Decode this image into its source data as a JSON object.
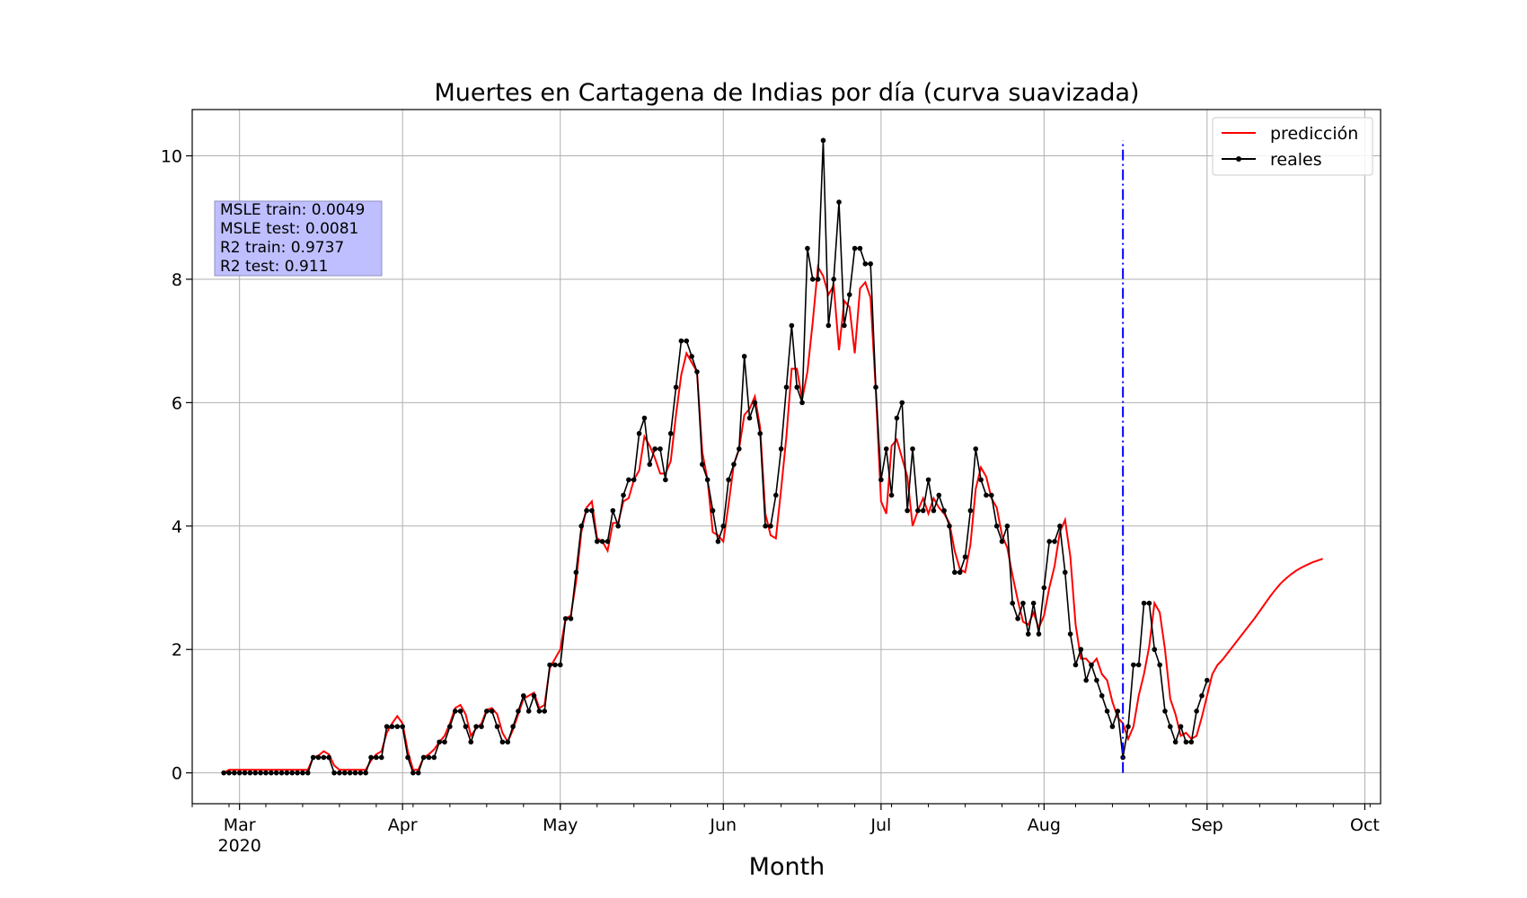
{
  "chart_data": {
    "type": "line",
    "title": "Muertes en Cartagena de Indias por día (curva suavizada)",
    "xlabel": "Month",
    "ylabel": "",
    "x_start": "2020-02-27",
    "x_ticks": [
      {
        "date": "2020-03-01",
        "label": "Mar",
        "sublabel": "2020"
      },
      {
        "date": "2020-04-01",
        "label": "Apr",
        "sublabel": ""
      },
      {
        "date": "2020-05-01",
        "label": "May",
        "sublabel": ""
      },
      {
        "date": "2020-06-01",
        "label": "Jun",
        "sublabel": ""
      },
      {
        "date": "2020-07-01",
        "label": "Jul",
        "sublabel": ""
      },
      {
        "date": "2020-08-01",
        "label": "Aug",
        "sublabel": ""
      },
      {
        "date": "2020-09-01",
        "label": "Sep",
        "sublabel": ""
      },
      {
        "date": "2020-10-01",
        "label": "Oct",
        "sublabel": ""
      }
    ],
    "xlim": [
      "2020-02-21",
      "2020-10-04"
    ],
    "ylim": [
      -0.5,
      10.75
    ],
    "y_ticks": [
      0,
      2,
      4,
      6,
      8,
      10
    ],
    "grid": true,
    "legend_position": "top-right",
    "series": [
      {
        "name": "reales",
        "color": "#000000",
        "marker": "dot",
        "values": [
          0,
          0,
          0,
          0,
          0,
          0,
          0,
          0,
          0,
          0,
          0,
          0,
          0,
          0,
          0,
          0,
          0,
          0.25,
          0.25,
          0.25,
          0.25,
          0,
          0,
          0,
          0,
          0,
          0,
          0,
          0.25,
          0.25,
          0.25,
          0.75,
          0.75,
          0.75,
          0.75,
          0.25,
          0,
          0,
          0.25,
          0.25,
          0.25,
          0.5,
          0.5,
          0.75,
          1,
          1,
          0.75,
          0.5,
          0.75,
          0.75,
          1,
          1,
          0.75,
          0.5,
          0.5,
          0.75,
          1,
          1.25,
          1,
          1.25,
          1,
          1,
          1.75,
          1.75,
          1.75,
          2.5,
          2.5,
          3.25,
          4,
          4.25,
          4.25,
          3.75,
          3.75,
          3.75,
          4.25,
          4,
          4.5,
          4.75,
          4.75,
          5.5,
          5.75,
          5,
          5.25,
          5.25,
          4.75,
          5.5,
          6.25,
          7,
          7,
          6.75,
          6.5,
          5,
          4.75,
          4.25,
          3.75,
          4,
          4.75,
          5,
          5.25,
          6.75,
          5.75,
          6,
          5.5,
          4,
          4,
          4.5,
          5.25,
          6.25,
          7.25,
          6.25,
          6,
          8.5,
          8,
          8,
          10.25,
          7.25,
          8,
          9.25,
          7.25,
          7.75,
          8.5,
          8.5,
          8.25,
          8.25,
          6.25,
          4.75,
          5.25,
          4.5,
          5.75,
          6,
          4.25,
          5.25,
          4.25,
          4.25,
          4.75,
          4.25,
          4.5,
          4.25,
          4,
          3.25,
          3.25,
          3.5,
          4.25,
          5.25,
          4.75,
          4.5,
          4.5,
          4,
          3.75,
          4,
          2.75,
          2.5,
          2.75,
          2.25,
          2.75,
          2.25,
          3,
          3.75,
          3.75,
          4,
          3.25,
          2.25,
          1.75,
          2,
          1.5,
          1.75,
          1.5,
          1.25,
          1,
          0.75,
          1,
          0.25,
          0.75,
          1.75,
          1.75,
          2.75,
          2.75,
          2,
          1.75,
          1,
          0.75,
          0.5,
          0.75,
          0.5,
          0.5,
          1,
          1.25,
          1.5
        ]
      },
      {
        "name": "predicción",
        "color": "#ff0000",
        "marker": "none",
        "values": [
          0,
          0.05,
          0.05,
          0.05,
          0.05,
          0.05,
          0.05,
          0.05,
          0.05,
          0.05,
          0.05,
          0.05,
          0.05,
          0.05,
          0.05,
          0.05,
          0.05,
          0.25,
          0.28,
          0.35,
          0.3,
          0.12,
          0.05,
          0.05,
          0.05,
          0.05,
          0.05,
          0.05,
          0.2,
          0.3,
          0.35,
          0.65,
          0.8,
          0.92,
          0.8,
          0.35,
          0.05,
          0.05,
          0.25,
          0.3,
          0.38,
          0.5,
          0.6,
          0.8,
          1.05,
          1.1,
          0.95,
          0.6,
          0.72,
          0.8,
          1.02,
          1.05,
          0.95,
          0.65,
          0.5,
          0.7,
          0.95,
          1.2,
          1.25,
          1.3,
          1.05,
          1.1,
          1.7,
          1.85,
          2,
          2.5,
          2.55,
          3.1,
          3.9,
          4.3,
          4.4,
          3.8,
          3.75,
          3.6,
          4.05,
          4.05,
          4.4,
          4.45,
          4.75,
          4.9,
          5.45,
          5.3,
          5.1,
          4.85,
          4.85,
          5.05,
          5.8,
          6.45,
          6.8,
          6.65,
          6.5,
          5.2,
          4.75,
          3.9,
          3.85,
          3.75,
          4.35,
          5,
          5.25,
          5.8,
          5.9,
          6.1,
          5.6,
          4.2,
          3.85,
          3.8,
          4.6,
          5.45,
          6.55,
          6.55,
          6.05,
          6.5,
          7.3,
          8.2,
          8.05,
          7.75,
          7.9,
          6.85,
          7.65,
          7.55,
          6.8,
          7.85,
          7.95,
          7.7,
          6.2,
          4.4,
          4.2,
          5.3,
          5.4,
          5.1,
          4.8,
          4,
          4.25,
          4.45,
          4.2,
          4.45,
          4.3,
          4.2,
          4.05,
          3.6,
          3.3,
          3.25,
          3.7,
          4.6,
          4.95,
          4.8,
          4.45,
          4.3,
          3.85,
          3.65,
          3.2,
          2.8,
          2.45,
          2.4,
          2.6,
          2.35,
          2.55,
          3,
          3.35,
          3.9,
          4.1,
          3.5,
          2.4,
          1.85,
          1.85,
          1.75,
          1.85,
          1.6,
          1.5,
          1.15,
          0.9,
          0.8,
          0.55,
          0.75,
          1.25,
          1.6,
          2.05,
          2.75,
          2.6,
          2.0,
          1.2,
          0.95,
          0.6,
          0.65,
          0.55,
          0.6,
          0.9,
          1.25,
          1.6,
          1.75,
          1.84,
          1.95,
          2.06,
          2.17,
          2.28,
          2.39,
          2.5,
          2.62,
          2.74,
          2.86,
          2.97,
          3.07,
          3.15,
          3.22,
          3.28,
          3.33,
          3.37,
          3.41,
          3.44,
          3.47
        ]
      }
    ],
    "vline": {
      "date": "2020-08-16",
      "y_range": [
        0,
        10.25
      ],
      "color": "#0000ff",
      "style": "dash-dot"
    },
    "annotations": [
      "MSLE train: 0.0049",
      "MSLE test: 0.0081",
      "R2 train: 0.9737",
      "R2 test: 0.911"
    ],
    "annotation_color": "#bfbfff"
  }
}
